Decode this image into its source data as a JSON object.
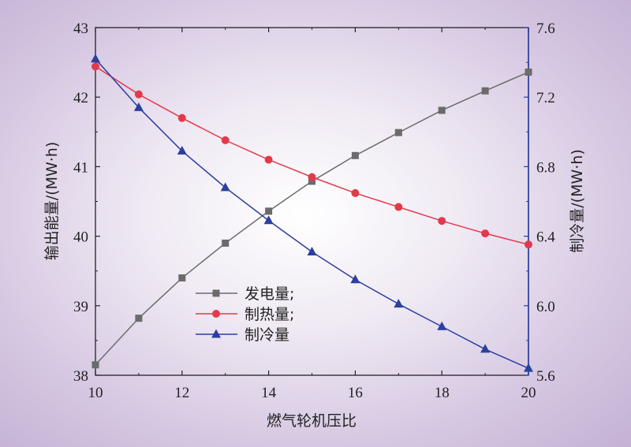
{
  "chart_data": {
    "type": "line",
    "xlabel": "燃气轮机压比",
    "ylabel_left": "输出能量/(MW·h)",
    "ylabel_right": "制冷量/(MW·h)",
    "x": [
      10,
      11,
      12,
      13,
      14,
      15,
      16,
      17,
      18,
      19,
      20
    ],
    "xlim": [
      10,
      20
    ],
    "xticks": [
      "10",
      "12",
      "14",
      "16",
      "18",
      "20"
    ],
    "ylim_left": [
      38,
      43
    ],
    "yticks_left": [
      "38",
      "39",
      "40",
      "41",
      "42",
      "43"
    ],
    "ylim_right": [
      5.6,
      7.6
    ],
    "yticks_right": [
      "5.6",
      "6.0",
      "6.4",
      "6.8",
      "7.2",
      "7.6"
    ],
    "grid": false,
    "legend_position": "center",
    "series": [
      {
        "name": "发电量;",
        "axis": "left",
        "marker": "square",
        "color": "#6b6b6b",
        "values": [
          38.15,
          38.82,
          39.4,
          39.9,
          40.36,
          40.79,
          41.16,
          41.49,
          41.81,
          42.09,
          42.36
        ]
      },
      {
        "name": "制热量;",
        "axis": "left",
        "marker": "circle",
        "color": "#e23a4a",
        "values": [
          42.44,
          42.04,
          41.7,
          41.38,
          41.1,
          40.85,
          40.62,
          40.42,
          40.22,
          40.04,
          39.88
        ]
      },
      {
        "name": "制冷量",
        "axis": "right",
        "marker": "triangle",
        "color": "#2b3f9e",
        "values": [
          7.42,
          7.14,
          6.89,
          6.68,
          6.49,
          6.31,
          6.15,
          6.01,
          5.88,
          5.75,
          5.64
        ]
      }
    ]
  }
}
